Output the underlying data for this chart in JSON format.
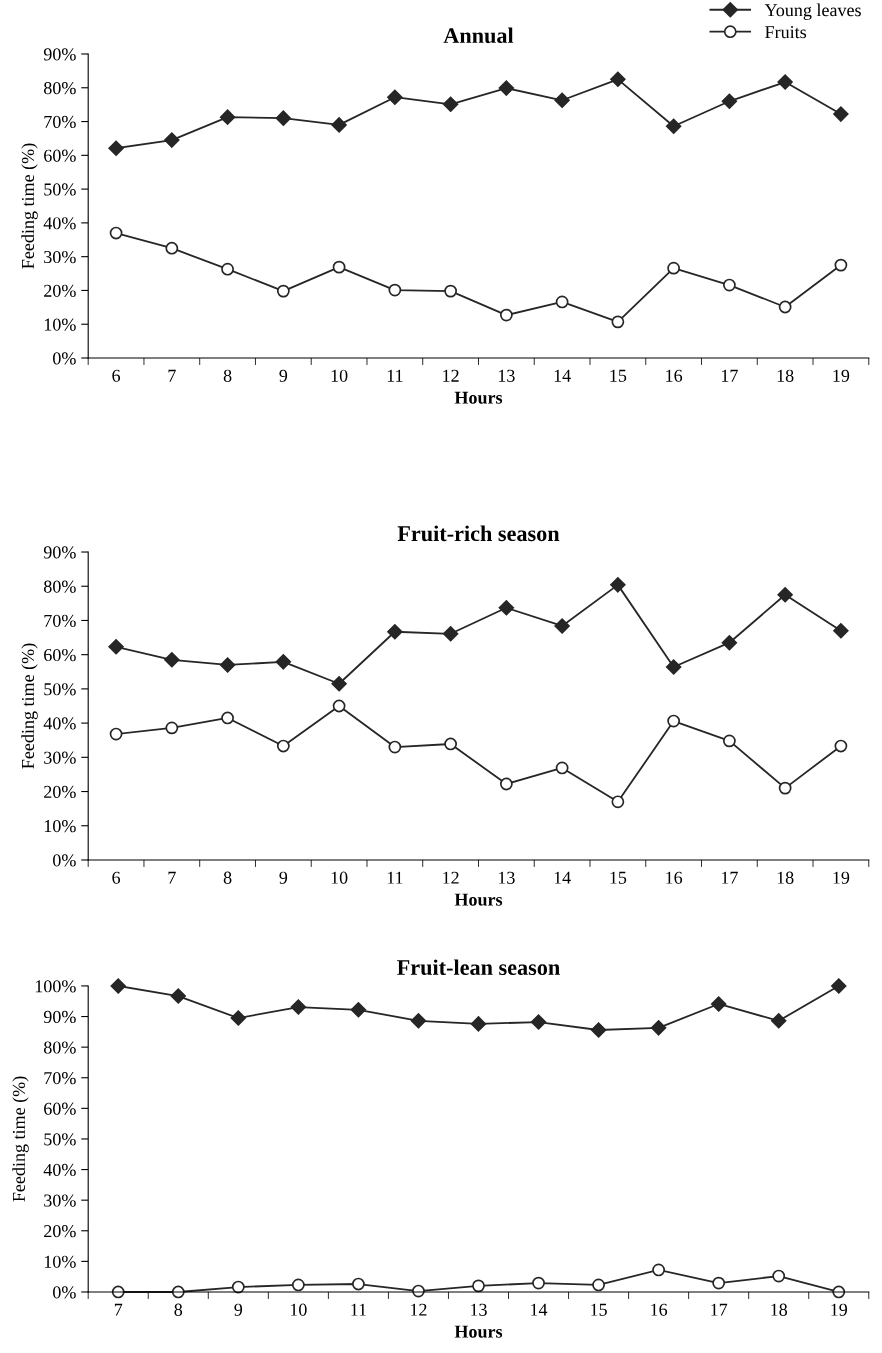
{
  "chart_data": [
    {
      "type": "line",
      "title": "Annual",
      "xlabel": "Hours",
      "ylabel": "Feeding time (%)",
      "categories": [
        "6",
        "7",
        "8",
        "9",
        "10",
        "11",
        "12",
        "13",
        "14",
        "15",
        "16",
        "17",
        "18",
        "19"
      ],
      "series": [
        {
          "name": "Young leaves",
          "color": "#262626",
          "marker": "diamond",
          "values": [
            62.1,
            64.5,
            71.3,
            71,
            69,
            77.2,
            75.1,
            79.9,
            76.3,
            82.5,
            68.6,
            76,
            81.7,
            72.2
          ]
        },
        {
          "name": "Fruits",
          "color": "#262626",
          "marker": "circle",
          "values": [
            37,
            32.5,
            26.3,
            19.8,
            26.9,
            20.1,
            19.8,
            12.7,
            16.6,
            10.7,
            26.6,
            21.6,
            15.1,
            27.5
          ]
        }
      ],
      "ylim": [
        0,
        90
      ],
      "yticks": [
        {
          "value": 0,
          "label": "0%"
        },
        {
          "value": 10,
          "label": "10%"
        },
        {
          "value": 20,
          "label": "20%"
        },
        {
          "value": 30,
          "label": "30%"
        },
        {
          "value": 40,
          "label": "40%"
        },
        {
          "value": 50,
          "label": "50%"
        },
        {
          "value": 60,
          "label": "60%"
        },
        {
          "value": 70,
          "label": "70%"
        },
        {
          "value": 80,
          "label": "80%"
        },
        {
          "value": 90,
          "label": "90%"
        }
      ],
      "grid": false,
      "legend": "top right",
      "line_style": "solid"
    },
    {
      "type": "line",
      "title": "Fruit-rich season",
      "xlabel": "Hours",
      "ylabel": "Feeding time (%)",
      "categories": [
        "6",
        "7",
        "8",
        "9",
        "10",
        "11",
        "12",
        "13",
        "14",
        "15",
        "16",
        "17",
        "18",
        "19"
      ],
      "series": [
        {
          "color": "#262626",
          "marker": "diamond",
          "values": [
            62.3,
            58.5,
            57,
            57.9,
            51.5,
            66.7,
            66.1,
            73.7,
            68.4,
            80.4,
            56.4,
            63.5,
            77.5,
            67
          ]
        },
        {
          "color": "#262626",
          "marker": "circle",
          "values": [
            36.8,
            38.6,
            41.5,
            33.3,
            45,
            33,
            33.9,
            22.2,
            26.9,
            17,
            40.6,
            34.8,
            21,
            33.3
          ]
        }
      ],
      "ylim": [
        0,
        90
      ],
      "yticks": [
        {
          "value": 0,
          "label": "0%"
        },
        {
          "value": 10,
          "label": "10%"
        },
        {
          "value": 20,
          "label": "20%"
        },
        {
          "value": 30,
          "label": "30%"
        },
        {
          "value": 40,
          "label": "40%"
        },
        {
          "value": 50,
          "label": "50%"
        },
        {
          "value": 60,
          "label": "60%"
        },
        {
          "value": 70,
          "label": "70%"
        },
        {
          "value": 80,
          "label": "80%"
        },
        {
          "value": 90,
          "label": "90%"
        }
      ],
      "grid": false,
      "line_style": "solid"
    },
    {
      "type": "line",
      "title": "Fruit-lean season",
      "xlabel": "Hours",
      "ylabel": "Feeding time (%)",
      "categories": [
        "7",
        "8",
        "9",
        "10",
        "11",
        "12",
        "13",
        "14",
        "15",
        "16",
        "17",
        "18",
        "19"
      ],
      "series": [
        {
          "color": "#262626",
          "marker": "diamond",
          "values": [
            100,
            96.7,
            89.5,
            93.1,
            92.2,
            88.6,
            87.6,
            88.2,
            85.6,
            86.3,
            94.1,
            88.6,
            100
          ]
        },
        {
          "color": "#262626",
          "marker": "circle",
          "values": [
            0,
            0,
            1.6,
            2.3,
            2.6,
            0.3,
            2,
            2.9,
            2.3,
            7.2,
            2.9,
            5.2,
            0
          ]
        }
      ],
      "ylim": [
        0,
        100
      ],
      "yticks": [
        {
          "value": 0,
          "label": "0%"
        },
        {
          "value": 10,
          "label": "10%"
        },
        {
          "value": 20,
          "label": "20%"
        },
        {
          "value": 30,
          "label": "30%"
        },
        {
          "value": 40,
          "label": "40%"
        },
        {
          "value": 50,
          "label": "50%"
        },
        {
          "value": 60,
          "label": "60%"
        },
        {
          "value": 70,
          "label": "70%"
        },
        {
          "value": 80,
          "label": "80%"
        },
        {
          "value": 90,
          "label": "90%"
        },
        {
          "value": 100,
          "label": "100%"
        }
      ],
      "grid": false,
      "line_style": "solid"
    }
  ]
}
